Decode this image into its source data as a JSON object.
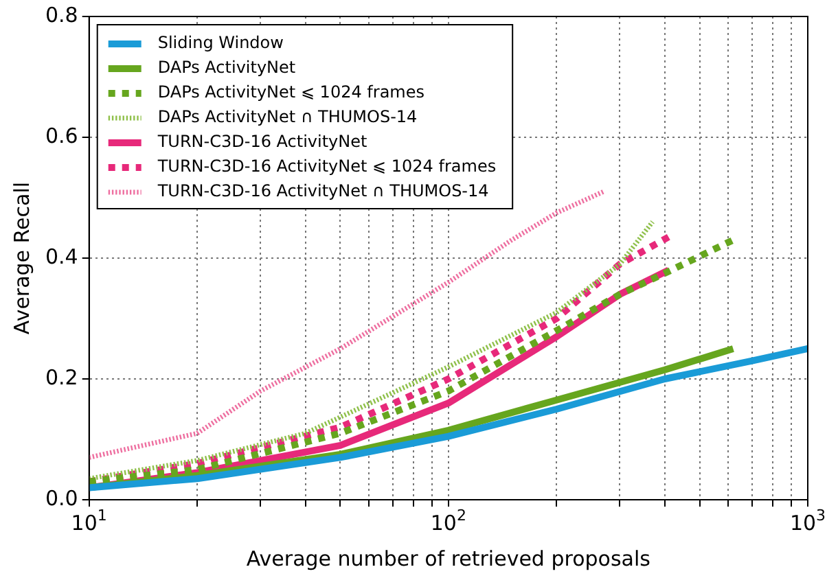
{
  "chart_data": {
    "type": "line",
    "xlabel": "Average number of retrieved proposals",
    "ylabel": "Average Recall",
    "log": "x",
    "xlim": [
      10,
      1000
    ],
    "ylim": [
      0,
      0.8
    ],
    "xticks": [
      {
        "value": 10,
        "label": "10$^{1}$"
      },
      {
        "value": 20,
        "label": null
      },
      {
        "value": 30,
        "label": null
      },
      {
        "value": 40,
        "label": null
      },
      {
        "value": 50,
        "label": null
      },
      {
        "value": 60,
        "label": null
      },
      {
        "value": 70,
        "label": null
      },
      {
        "value": 80,
        "label": null
      },
      {
        "value": 90,
        "label": null
      },
      {
        "value": 100,
        "label": "10$^{2}$"
      },
      {
        "value": 200,
        "label": null
      },
      {
        "value": 300,
        "label": null
      },
      {
        "value": 400,
        "label": null
      },
      {
        "value": 500,
        "label": null
      },
      {
        "value": 600,
        "label": null
      },
      {
        "value": 700,
        "label": null
      },
      {
        "value": 800,
        "label": null
      },
      {
        "value": 900,
        "label": null
      },
      {
        "value": 1000,
        "label": "10$^{3}$"
      }
    ],
    "yticks": [
      {
        "value": 0,
        "label": "0.0"
      },
      {
        "value": 0.2,
        "label": "0.2"
      },
      {
        "value": 0.4,
        "label": "0.4"
      },
      {
        "value": 0.6,
        "label": "0.6"
      },
      {
        "value": 0.8,
        "label": "0.8"
      }
    ],
    "grid": true,
    "legend": "top left",
    "marker": "none",
    "series": [
      {
        "name": "Sliding Window",
        "color": "#1a9bd7",
        "line_style": "solid",
        "x": [
          10,
          20,
          50,
          100,
          200,
          400,
          700,
          1000
        ],
        "values": [
          0.02,
          0.035,
          0.07,
          0.105,
          0.15,
          0.2,
          0.23,
          0.25
        ]
      },
      {
        "name": "DAPs ActivityNet",
        "color": "#66a61e",
        "line_style": "solid",
        "x": [
          10,
          20,
          50,
          100,
          200,
          400,
          620
        ],
        "values": [
          0.02,
          0.04,
          0.075,
          0.115,
          0.165,
          0.215,
          0.25
        ]
      },
      {
        "name": "DAPs ActivityNet ⩽ 1024 frames",
        "color": "#66a61e",
        "line_style": "dashed",
        "x": [
          10,
          20,
          50,
          100,
          200,
          300,
          400,
          620
        ],
        "values": [
          0.03,
          0.05,
          0.11,
          0.18,
          0.28,
          0.34,
          0.375,
          0.43
        ]
      },
      {
        "name": "DAPs ActivityNet ∩ THUMOS-14",
        "color": "#8fc04a",
        "line_style": "dotted",
        "x": [
          10,
          20,
          40,
          100,
          200,
          300,
          370
        ],
        "values": [
          0.035,
          0.065,
          0.11,
          0.22,
          0.31,
          0.39,
          0.46
        ]
      },
      {
        "name": "TURN-C3D-16 ActivityNet",
        "color": "#e7297a",
        "line_style": "solid",
        "x": [
          10,
          20,
          50,
          100,
          200,
          300,
          410
        ],
        "values": [
          0.02,
          0.045,
          0.09,
          0.16,
          0.27,
          0.34,
          0.38
        ]
      },
      {
        "name": "TURN-C3D-16 ActivityNet ⩽ 1024 frames",
        "color": "#e7297a",
        "line_style": "dashed",
        "x": [
          10,
          20,
          50,
          100,
          200,
          300,
          410
        ],
        "values": [
          0.03,
          0.06,
          0.12,
          0.2,
          0.3,
          0.39,
          0.435
        ]
      },
      {
        "name": "TURN-C3D-16 ActivityNet ∩ THUMOS-14",
        "color": "#ee6fa0",
        "line_style": "dotted",
        "x": [
          10,
          20,
          30,
          50,
          100,
          150,
          200,
          270
        ],
        "values": [
          0.07,
          0.11,
          0.18,
          0.25,
          0.36,
          0.43,
          0.475,
          0.51
        ]
      }
    ]
  }
}
